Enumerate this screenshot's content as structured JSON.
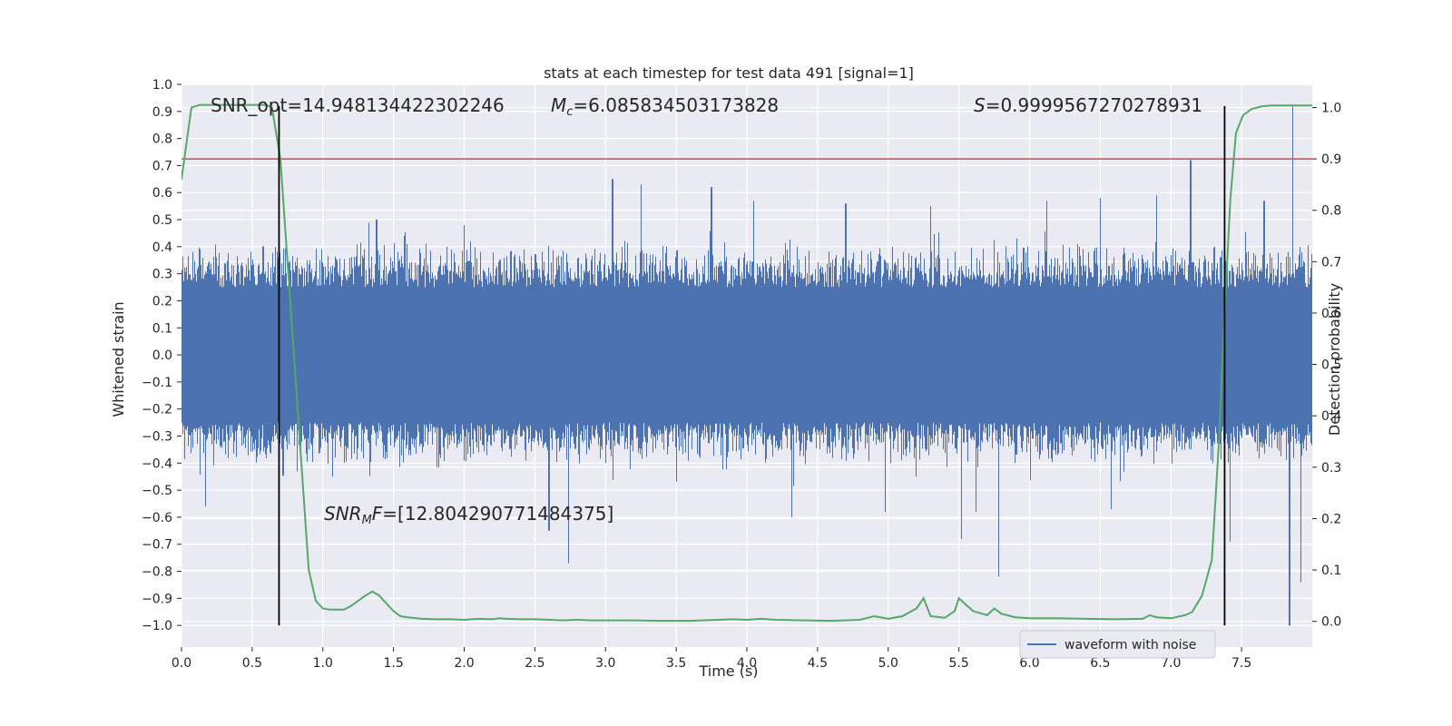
{
  "chart_data": {
    "type": "line",
    "title": "stats at each timestep for test data 491 [signal=1]",
    "xlabel": "Time (s)",
    "ylabel": "Whitened strain",
    "y2label": "Detection probability",
    "xlim": [
      0.0,
      8.0
    ],
    "ylim": [
      -1.08,
      1.0
    ],
    "y2lim": [
      -0.05,
      1.045
    ],
    "xticks": [
      0.0,
      0.5,
      1.0,
      1.5,
      2.0,
      2.5,
      3.0,
      3.5,
      4.0,
      4.5,
      5.0,
      5.5,
      6.0,
      6.5,
      7.0,
      7.5
    ],
    "xtick_labels": [
      "0.0",
      "0.5",
      "1.0",
      "1.5",
      "2.0",
      "2.5",
      "3.0",
      "3.5",
      "4.0",
      "4.5",
      "5.0",
      "5.5",
      "6.0",
      "6.5",
      "7.0",
      "7.5"
    ],
    "yticks": [
      1.0,
      0.9,
      0.8,
      0.7,
      0.6,
      0.5,
      0.4,
      0.3,
      0.2,
      0.1,
      0.0,
      -0.1,
      -0.2,
      -0.3,
      -0.4,
      -0.5,
      -0.6,
      -0.7,
      -0.8,
      -0.9,
      -1.0
    ],
    "ytick_labels": [
      "1.0",
      "0.9",
      "0.8",
      "0.7",
      "0.6",
      "0.5",
      "0.4",
      "0.3",
      "0.2",
      "0.1",
      "0.0",
      "−0.1",
      "−0.2",
      "−0.3",
      "−0.4",
      "−0.5",
      "−0.6",
      "−0.7",
      "−0.8",
      "−0.9",
      "−1.0"
    ],
    "y2ticks": [
      1.0,
      0.9,
      0.8,
      0.7,
      0.6,
      0.5,
      0.4,
      0.3,
      0.2,
      0.1,
      0.0
    ],
    "y2tick_labels": [
      "1.0",
      "0.9",
      "0.8",
      "0.7",
      "0.6",
      "0.5",
      "0.4",
      "0.3",
      "0.2",
      "0.1",
      "0.0"
    ],
    "grid": true,
    "legend": {
      "location": "lower-right",
      "entries": [
        "waveform with noise"
      ]
    },
    "annotations": {
      "snr_opt": "SNR_opt=14.948134422302246",
      "mc_symbol": "M",
      "mc_sub": "c",
      "mc_value": "=6.085834503173828",
      "s_symbol": "S",
      "s_value": "=0.9999567270278931",
      "snr_mf_symbol": "SNR",
      "snr_mf_sub": "M",
      "snr_mf_f": "F",
      "snr_mf_value": "=[12.804290771484375]"
    },
    "series": [
      {
        "name": "waveform with noise",
        "axis": "left",
        "color": "#4c72b0",
        "kind": "noise",
        "seed": 491,
        "core_abs": 0.25,
        "typical_peak": 0.42,
        "spikes": [
          {
            "x": 1.38,
            "y": 0.5
          },
          {
            "x": 1.58,
            "y": 0.44
          },
          {
            "x": 2.0,
            "y": 0.48
          },
          {
            "x": 3.05,
            "y": 0.65
          },
          {
            "x": 3.25,
            "y": 0.63
          },
          {
            "x": 3.75,
            "y": 0.62
          },
          {
            "x": 4.05,
            "y": 0.57
          },
          {
            "x": 4.7,
            "y": 0.56
          },
          {
            "x": 5.3,
            "y": 0.55
          },
          {
            "x": 6.12,
            "y": 0.57
          },
          {
            "x": 6.5,
            "y": 0.58
          },
          {
            "x": 6.9,
            "y": 0.59
          },
          {
            "x": 7.14,
            "y": 0.72
          },
          {
            "x": 7.66,
            "y": 0.57
          },
          {
            "x": 7.86,
            "y": 0.92
          },
          {
            "x": 2.74,
            "y": -0.77
          },
          {
            "x": 2.6,
            "y": -0.65
          },
          {
            "x": 5.52,
            "y": -0.68
          },
          {
            "x": 5.78,
            "y": -0.82
          },
          {
            "x": 4.98,
            "y": -0.58
          },
          {
            "x": 5.62,
            "y": -0.58
          },
          {
            "x": 4.32,
            "y": -0.6
          },
          {
            "x": 6.58,
            "y": -0.57
          },
          {
            "x": 7.42,
            "y": -0.69
          },
          {
            "x": 7.84,
            "y": -1.0
          },
          {
            "x": 7.92,
            "y": -0.84
          },
          {
            "x": 0.17,
            "y": -0.56
          }
        ]
      },
      {
        "name": "detection probability",
        "axis": "right",
        "color": "#55a868",
        "x": [
          0.0,
          0.07,
          0.13,
          0.2,
          0.3,
          0.4,
          0.5,
          0.6,
          0.64,
          0.7,
          0.75,
          0.8,
          0.85,
          0.9,
          0.95,
          1.0,
          1.05,
          1.1,
          1.15,
          1.2,
          1.25,
          1.3,
          1.35,
          1.4,
          1.45,
          1.5,
          1.55,
          1.6,
          1.7,
          1.8,
          1.9,
          2.0,
          2.1,
          2.2,
          2.25,
          2.3,
          2.4,
          2.5,
          2.6,
          2.7,
          2.8,
          2.9,
          3.0,
          3.2,
          3.4,
          3.6,
          3.8,
          3.9,
          4.0,
          4.1,
          4.2,
          4.4,
          4.6,
          4.8,
          4.9,
          5.0,
          5.1,
          5.2,
          5.25,
          5.3,
          5.4,
          5.47,
          5.5,
          5.6,
          5.7,
          5.75,
          5.8,
          5.9,
          6.0,
          6.2,
          6.4,
          6.6,
          6.8,
          6.85,
          6.9,
          7.0,
          7.1,
          7.15,
          7.22,
          7.29,
          7.34,
          7.38,
          7.42,
          7.46,
          7.51,
          7.57,
          7.64,
          7.71,
          7.78,
          7.86,
          8.0
        ],
        "values": [
          0.86,
          1.0,
          1.005,
          1.005,
          1.005,
          1.005,
          1.005,
          1.005,
          1.0,
          0.9,
          0.7,
          0.5,
          0.3,
          0.1,
          0.04,
          0.025,
          0.023,
          0.023,
          0.023,
          0.03,
          0.04,
          0.05,
          0.058,
          0.05,
          0.035,
          0.02,
          0.01,
          0.008,
          0.005,
          0.004,
          0.004,
          0.003,
          0.005,
          0.004,
          0.006,
          0.005,
          0.004,
          0.004,
          0.003,
          0.002,
          0.003,
          0.002,
          0.002,
          0.002,
          0.001,
          0.001,
          0.003,
          0.004,
          0.003,
          0.005,
          0.003,
          0.002,
          0.001,
          0.003,
          0.01,
          0.005,
          0.01,
          0.025,
          0.045,
          0.01,
          0.007,
          0.02,
          0.045,
          0.02,
          0.012,
          0.025,
          0.015,
          0.008,
          0.006,
          0.006,
          0.005,
          0.004,
          0.005,
          0.012,
          0.008,
          0.006,
          0.012,
          0.018,
          0.05,
          0.12,
          0.35,
          0.6,
          0.82,
          0.95,
          0.985,
          0.997,
          1.002,
          1.004,
          1.004,
          1.004,
          1.004
        ]
      },
      {
        "name": "threshold",
        "axis": "right",
        "color": "#c44e52",
        "y": 0.9
      }
    ],
    "vlines": [
      0.69,
      7.38
    ],
    "vline_range": [
      -1.0,
      0.92
    ]
  }
}
